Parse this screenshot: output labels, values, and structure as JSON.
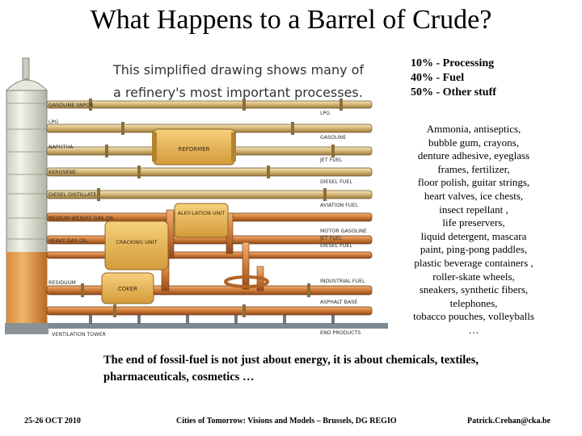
{
  "page_title": "What Happens to a Barrel of Crude?",
  "stats": [
    "10% - Processing",
    "40% - Fuel",
    "50% - Other stuff"
  ],
  "uses_lines": [
    "Ammonia, antiseptics,",
    "bubble gum, crayons,",
    "denture adhesive, eyeglass",
    "frames, fertilizer,",
    "floor polish, guitar strings,",
    "heart valves, ice chests,",
    "insect repellant ,",
    "life preservers,",
    "liquid detergent, mascara",
    "paint, ping-pong paddles,",
    "plastic beverage containers ,",
    "roller-skate wheels,",
    "sneakers, synthetic fibers,",
    "telephones,",
    "tobacco pouches, volleyballs",
    "…"
  ],
  "bottom_text": "The end of fossil-fuel is not just about energy, it is about chemicals, textiles, pharmaceuticals, cosmetics …",
  "footer": {
    "date": "25-26 OCT 2010",
    "event": "Cities of Tomorrow: Visions and Models – Brussels, DG REGIO",
    "email": "Patrick.Crehan@cka.be"
  },
  "drawing": {
    "caption_line1": "This simplified drawing shows many of",
    "caption_line2": "a refinery's most important processes.",
    "tower_labels": {
      "gasoline_vapor": "GASOLINE VAPOR",
      "lpg": "LPG",
      "naphtha": "NAPHTHA",
      "kerosene": "KEROSENE",
      "diesel": "DIESEL DISTILLATE",
      "medium_gas_oil": "MEDIUM-WEIGHT GAS OIL",
      "heavy_gas_oil": "HEAVY GAS OIL",
      "residuum": "RESIDUUM",
      "ventilation": "VENTILATION TOWER"
    },
    "unit_labels": {
      "reformer": "REFORMER",
      "alkylation": "ALKY-LATION UNIT",
      "cracking": "CRACKING UNIT",
      "coker": "COKER"
    },
    "product_labels": {
      "lpg": "LPG",
      "gasoline": "GASOLINE",
      "jet_fuel": "JET FUEL",
      "diesel_fuel": "DIESEL FUEL",
      "aviation_fuel": "AVIATION FUEL",
      "motor_gasoline": "MOTOR GASOLINE",
      "jet_fuel_2": "JET FUEL",
      "diesel_fuel_2": "DIESEL FUEL",
      "industrial_fuel": "INDUSTRIAL FUEL",
      "asphalt_base": "ASPHALT BASE",
      "end_products": "END PRODUCTS"
    }
  }
}
